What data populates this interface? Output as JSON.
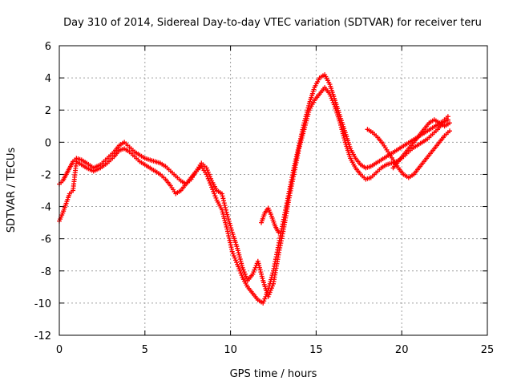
{
  "chart_data": {
    "type": "scatter",
    "title": "Day 310 of 2014, Sidereal Day-to-day VTEC variation (SDTVAR) for receiver teru",
    "xlabel": "GPS time / hours",
    "ylabel": "SDTVAR / TECUs",
    "xlim": [
      0,
      25
    ],
    "ylim": [
      -12,
      6
    ],
    "xticks": [
      "0",
      "5",
      "10",
      "15",
      "20",
      "25"
    ],
    "yticks": [
      "-12",
      "-10",
      "-8",
      "-6",
      "-4",
      "-2",
      "0",
      "2",
      "4",
      "6"
    ],
    "grid": true,
    "marker": "plus",
    "color": "#ff0000",
    "series": [
      {
        "x": [
          0.0,
          0.2,
          0.4,
          0.6,
          0.8,
          1.0,
          1.3,
          1.6,
          2.0,
          2.4,
          2.8,
          3.2,
          3.5,
          3.8,
          4.1,
          4.4,
          4.7,
          5.0,
          5.3,
          5.6,
          5.9,
          6.2,
          6.5,
          6.8,
          7.1,
          7.4,
          7.7,
          8.0,
          8.3,
          8.6,
          8.9,
          9.2,
          9.5,
          9.8,
          10.1,
          10.4,
          10.7,
          11.0,
          11.3,
          11.6,
          11.9,
          12.2,
          12.5,
          12.8,
          13.1,
          13.4,
          13.7,
          14.0,
          14.3,
          14.6,
          14.9,
          15.2,
          15.5,
          15.8,
          16.1,
          16.4,
          16.7,
          17.0,
          17.3,
          17.6,
          17.9,
          18.2,
          18.5,
          18.8,
          19.1,
          19.4,
          19.7,
          20.0,
          20.3,
          20.6,
          20.9,
          21.2,
          21.5,
          21.8,
          22.1,
          22.4,
          22.7
        ],
        "y": [
          -2.6,
          -2.4,
          -2.0,
          -1.6,
          -1.2,
          -1.0,
          -1.1,
          -1.3,
          -1.6,
          -1.4,
          -1.0,
          -0.6,
          -0.2,
          0.0,
          -0.3,
          -0.6,
          -0.8,
          -1.0,
          -1.1,
          -1.2,
          -1.3,
          -1.5,
          -1.8,
          -2.1,
          -2.4,
          -2.6,
          -2.3,
          -1.8,
          -1.3,
          -1.6,
          -2.4,
          -3.0,
          -3.2,
          -4.5,
          -5.6,
          -6.6,
          -7.8,
          -8.6,
          -8.2,
          -7.4,
          -8.6,
          -9.6,
          -8.8,
          -7.0,
          -5.4,
          -3.6,
          -2.0,
          -0.4,
          0.8,
          2.0,
          2.6,
          3.0,
          3.4,
          3.0,
          2.2,
          1.2,
          0.0,
          -1.0,
          -1.6,
          -2.0,
          -2.3,
          -2.2,
          -1.9,
          -1.6,
          -1.4,
          -1.3,
          -1.2,
          -1.0,
          -0.7,
          -0.4,
          -0.2,
          0.0,
          0.2,
          0.5,
          0.8,
          1.2,
          1.4
        ]
      },
      {
        "x": [
          0.0,
          0.2,
          0.4,
          0.6,
          0.8,
          1.0,
          1.3,
          1.6,
          2.0,
          2.4,
          2.8,
          3.2,
          3.5,
          3.8,
          4.1,
          4.4,
          4.7,
          5.0,
          5.3,
          5.6,
          5.9,
          6.2,
          6.5,
          6.8,
          7.1,
          7.4,
          7.7,
          8.0,
          8.3,
          8.6,
          8.9,
          9.2,
          9.5,
          9.8,
          10.1,
          10.4,
          10.7,
          11.0,
          11.3,
          11.6,
          11.9,
          12.2,
          12.5,
          12.8,
          13.1,
          13.4,
          13.7,
          14.0,
          14.3,
          14.6,
          14.9,
          15.2,
          15.5,
          15.8,
          16.1,
          16.4,
          16.7,
          17.0,
          17.3,
          17.6,
          17.9,
          18.2,
          18.5,
          18.8,
          19.1,
          19.4,
          19.7,
          20.0,
          20.3,
          20.6,
          20.9,
          21.2,
          21.5,
          21.8,
          22.1,
          22.4,
          22.7
        ],
        "y": [
          -4.9,
          -4.4,
          -3.8,
          -3.2,
          -3.0,
          -1.2,
          -1.4,
          -1.6,
          -1.8,
          -1.6,
          -1.3,
          -0.9,
          -0.5,
          -0.4,
          -0.6,
          -0.9,
          -1.2,
          -1.4,
          -1.6,
          -1.8,
          -2.0,
          -2.3,
          -2.7,
          -3.2,
          -3.0,
          -2.6,
          -2.2,
          -1.8,
          -1.5,
          -2.0,
          -2.8,
          -3.6,
          -4.2,
          -5.4,
          -6.8,
          -7.6,
          -8.4,
          -9.0,
          -9.4,
          -9.8,
          -10.0,
          -9.2,
          -8.0,
          -6.4,
          -4.8,
          -3.2,
          -1.6,
          -0.2,
          1.2,
          2.4,
          3.4,
          4.0,
          4.2,
          3.6,
          2.6,
          1.6,
          0.6,
          -0.4,
          -1.0,
          -1.4,
          -1.6,
          -1.5,
          -1.3,
          -1.1,
          -0.9,
          -0.7,
          -0.5,
          -0.3,
          -0.1,
          0.1,
          0.3,
          0.5,
          0.7,
          0.9,
          1.1,
          1.3,
          1.6
        ]
      },
      {
        "x": [
          18.0,
          18.3,
          18.6,
          18.9,
          19.2,
          19.5,
          19.8,
          20.1,
          20.4,
          20.7,
          21.0,
          21.3,
          21.6,
          21.9,
          22.2,
          22.5,
          22.8
        ],
        "y": [
          0.8,
          0.6,
          0.3,
          -0.1,
          -0.6,
          -1.1,
          -1.6,
          -2.0,
          -2.2,
          -2.0,
          -1.6,
          -1.2,
          -0.8,
          -0.4,
          0.0,
          0.4,
          0.7
        ]
      },
      {
        "x": [
          19.5,
          19.8,
          20.1,
          20.4,
          20.7,
          21.0,
          21.3,
          21.6,
          21.9,
          22.2,
          22.5,
          22.8
        ],
        "y": [
          -1.6,
          -1.2,
          -0.8,
          -0.4,
          0.0,
          0.4,
          0.8,
          1.2,
          1.4,
          1.2,
          1.0,
          1.2
        ]
      },
      {
        "x": [
          11.8,
          12.0,
          12.2,
          12.4,
          12.6,
          12.8
        ],
        "y": [
          -5.0,
          -4.4,
          -4.1,
          -4.6,
          -5.2,
          -5.6
        ]
      }
    ]
  }
}
